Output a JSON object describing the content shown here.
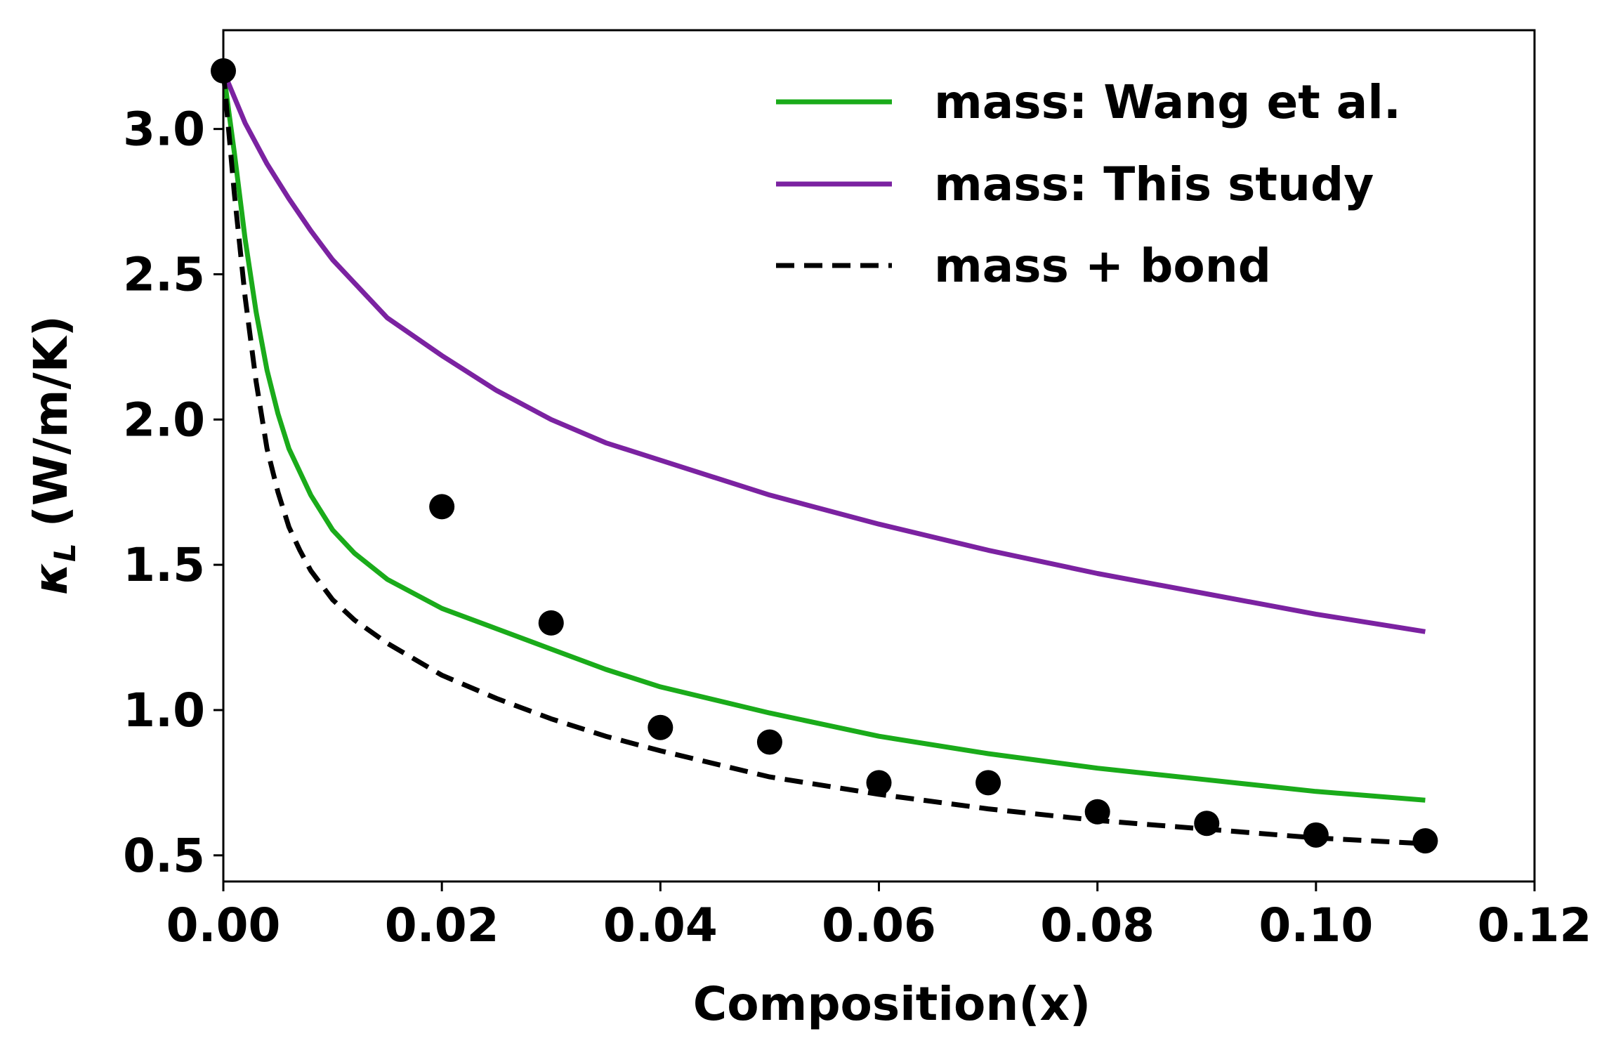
{
  "chart_data": {
    "type": "line",
    "title": "",
    "xlabel": "Composition(x)",
    "ylabel_main": "κ",
    "ylabel_sub": "L",
    "ylabel_unit": " (W/m/K)",
    "xlim": [
      0.0,
      0.12
    ],
    "ylim": [
      0.41,
      3.34
    ],
    "xticks": [
      0.0,
      0.02,
      0.04,
      0.06,
      0.08,
      0.1,
      0.12
    ],
    "xtick_labels": [
      "0.00",
      "0.02",
      "0.04",
      "0.06",
      "0.08",
      "0.10",
      "0.12"
    ],
    "yticks": [
      0.5,
      1.0,
      1.5,
      2.0,
      2.5,
      3.0
    ],
    "ytick_labels": [
      "0.5",
      "1.0",
      "1.5",
      "2.0",
      "2.5",
      "3.0"
    ],
    "grid": false,
    "legend_position": "top-right",
    "series": [
      {
        "name": "mass: Wang et al.",
        "style": "solid",
        "color": "#1aab1a",
        "x": [
          0.0,
          0.001,
          0.002,
          0.003,
          0.004,
          0.005,
          0.006,
          0.008,
          0.01,
          0.012,
          0.015,
          0.02,
          0.025,
          0.03,
          0.035,
          0.04,
          0.05,
          0.06,
          0.07,
          0.08,
          0.09,
          0.1,
          0.11
        ],
        "y": [
          3.2,
          2.92,
          2.62,
          2.37,
          2.17,
          2.02,
          1.9,
          1.74,
          1.62,
          1.54,
          1.45,
          1.35,
          1.28,
          1.21,
          1.14,
          1.08,
          0.99,
          0.91,
          0.85,
          0.8,
          0.76,
          0.72,
          0.69
        ]
      },
      {
        "name": "mass: This study",
        "style": "solid",
        "color": "#7b22a1",
        "x": [
          0.0,
          0.002,
          0.004,
          0.006,
          0.008,
          0.01,
          0.015,
          0.02,
          0.025,
          0.03,
          0.035,
          0.04,
          0.05,
          0.06,
          0.07,
          0.08,
          0.09,
          0.1,
          0.11
        ],
        "y": [
          3.2,
          3.02,
          2.88,
          2.76,
          2.65,
          2.55,
          2.35,
          2.22,
          2.1,
          2.0,
          1.92,
          1.86,
          1.74,
          1.64,
          1.55,
          1.47,
          1.4,
          1.33,
          1.27
        ]
      },
      {
        "name": "mass + bond",
        "style": "dashed",
        "color": "#000000",
        "x": [
          0.0,
          0.001,
          0.002,
          0.003,
          0.004,
          0.005,
          0.006,
          0.007,
          0.008,
          0.01,
          0.012,
          0.015,
          0.02,
          0.025,
          0.03,
          0.035,
          0.04,
          0.05,
          0.06,
          0.07,
          0.08,
          0.09,
          0.1,
          0.11
        ],
        "y": [
          3.2,
          2.78,
          2.42,
          2.13,
          1.9,
          1.75,
          1.63,
          1.55,
          1.48,
          1.38,
          1.31,
          1.23,
          1.12,
          1.04,
          0.97,
          0.91,
          0.86,
          0.77,
          0.71,
          0.66,
          0.62,
          0.59,
          0.56,
          0.54
        ]
      }
    ],
    "points": {
      "color": "#000000",
      "x": [
        0.0,
        0.02,
        0.03,
        0.04,
        0.05,
        0.06,
        0.07,
        0.08,
        0.09,
        0.1,
        0.11
      ],
      "y": [
        3.2,
        1.7,
        1.3,
        0.94,
        0.89,
        0.75,
        0.75,
        0.65,
        0.61,
        0.57,
        0.55
      ]
    }
  }
}
